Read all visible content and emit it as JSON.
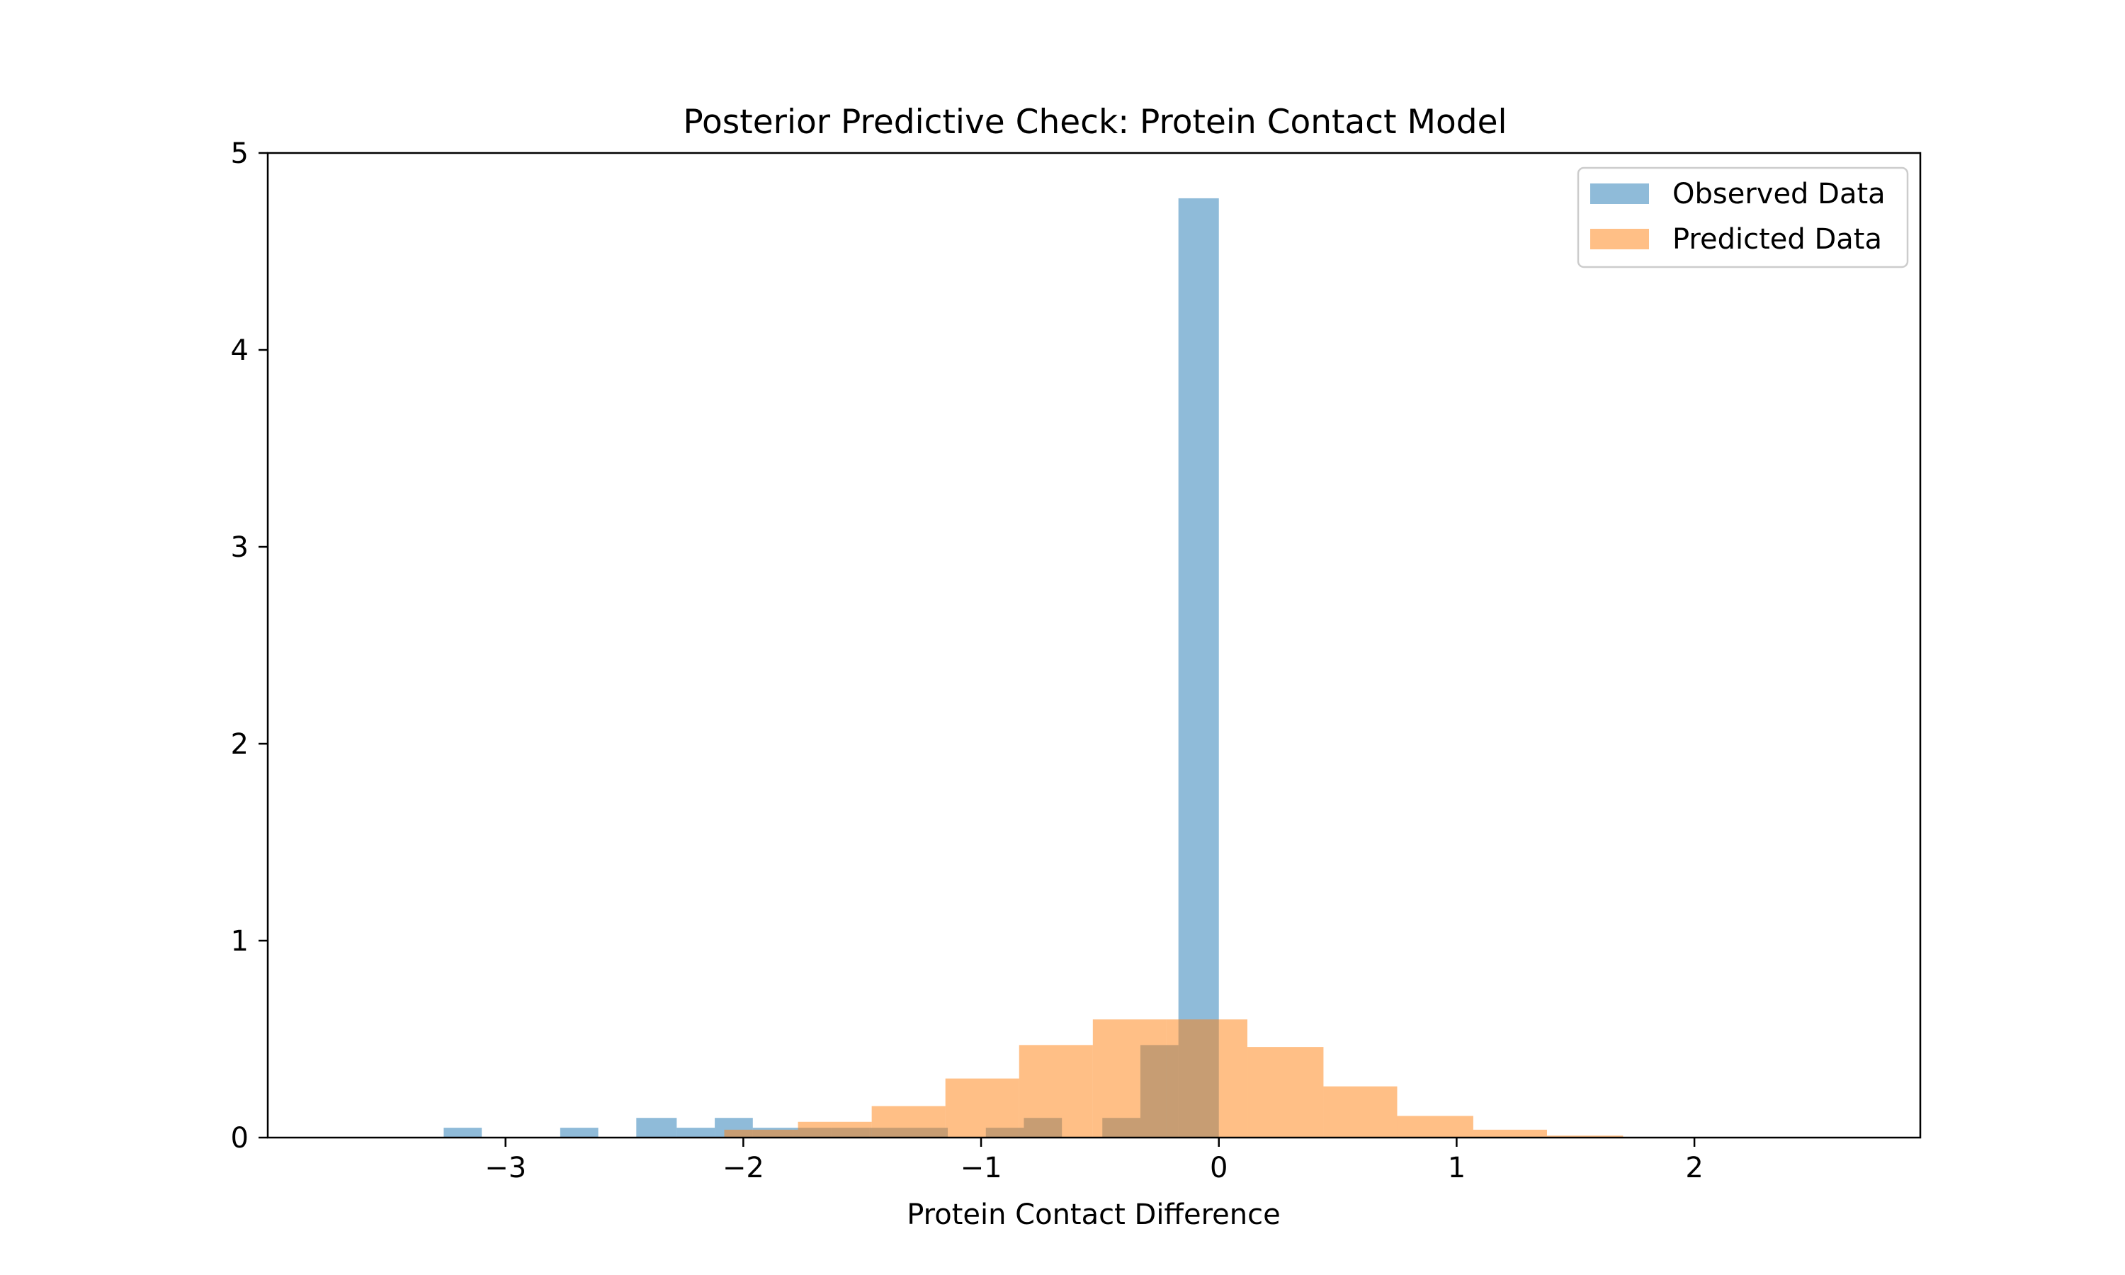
{
  "chart_data": {
    "type": "bar",
    "title": "Posterior Predictive Check: Protein Contact Model",
    "xlabel": "Protein Contact Difference",
    "ylabel": "",
    "xlim": [
      -4.0,
      2.95
    ],
    "ylim": [
      0,
      5
    ],
    "xticks": [
      -3,
      -2,
      -1,
      0,
      1,
      2
    ],
    "xtick_labels": [
      "−3",
      "−2",
      "−1",
      "0",
      "1",
      "2"
    ],
    "yticks": [
      0,
      1,
      2,
      3,
      4,
      5
    ],
    "ytick_labels": [
      "0",
      "1",
      "2",
      "3",
      "4",
      "5"
    ],
    "grid": false,
    "legend_position": "top-right",
    "series": [
      {
        "name": "Observed Data",
        "color": "#1f77b4",
        "opacity": 0.5,
        "bins": [
          {
            "x0": -3.26,
            "x1": -3.1,
            "value": 0.05
          },
          {
            "x0": -2.77,
            "x1": -2.61,
            "value": 0.05
          },
          {
            "x0": -2.45,
            "x1": -2.28,
            "value": 0.1
          },
          {
            "x0": -2.28,
            "x1": -2.12,
            "value": 0.05
          },
          {
            "x0": -2.12,
            "x1": -1.96,
            "value": 0.1
          },
          {
            "x0": -1.96,
            "x1": -1.79,
            "value": 0.05
          },
          {
            "x0": -1.79,
            "x1": -1.63,
            "value": 0.05
          },
          {
            "x0": -1.63,
            "x1": -1.47,
            "value": 0.05
          },
          {
            "x0": -1.47,
            "x1": -1.31,
            "value": 0.05
          },
          {
            "x0": -1.31,
            "x1": -1.14,
            "value": 0.05
          },
          {
            "x0": -0.98,
            "x1": -0.82,
            "value": 0.05
          },
          {
            "x0": -0.82,
            "x1": -0.66,
            "value": 0.1
          },
          {
            "x0": -0.49,
            "x1": -0.33,
            "value": 0.1
          },
          {
            "x0": -0.33,
            "x1": -0.17,
            "value": 0.47
          },
          {
            "x0": -0.17,
            "x1": 0.0,
            "value": 4.77
          }
        ]
      },
      {
        "name": "Predicted Data",
        "color": "#ff7f0e",
        "opacity": 0.5,
        "bins": [
          {
            "x0": -2.08,
            "x1": -1.77,
            "value": 0.04
          },
          {
            "x0": -1.77,
            "x1": -1.46,
            "value": 0.08
          },
          {
            "x0": -1.46,
            "x1": -1.15,
            "value": 0.16
          },
          {
            "x0": -1.15,
            "x1": -0.84,
            "value": 0.3
          },
          {
            "x0": -0.84,
            "x1": -0.53,
            "value": 0.47
          },
          {
            "x0": -0.53,
            "x1": -0.22,
            "value": 0.6
          },
          {
            "x0": -0.22,
            "x1": 0.12,
            "value": 0.6
          },
          {
            "x0": 0.12,
            "x1": 0.44,
            "value": 0.46
          },
          {
            "x0": 0.44,
            "x1": 0.75,
            "value": 0.26
          },
          {
            "x0": 0.75,
            "x1": 1.07,
            "value": 0.11
          },
          {
            "x0": 1.07,
            "x1": 1.38,
            "value": 0.04
          },
          {
            "x0": 1.38,
            "x1": 1.7,
            "value": 0.01
          }
        ]
      }
    ]
  }
}
